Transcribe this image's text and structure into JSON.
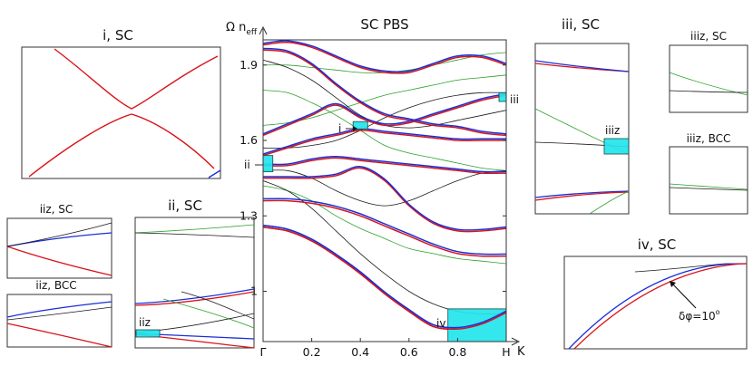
{
  "colors": {
    "red": "#d8141a",
    "blue": "#1a2ed8",
    "green": "#2aa02a",
    "black": "#1a1a1a",
    "highlight": "#22e6ec"
  },
  "chart_data": [
    {
      "id": "main",
      "type": "line",
      "title": "SC PBS",
      "ylabel": "Ω n_eff",
      "ylabel_main": "Ω n",
      "ylabel_sub": "eff",
      "xlabel": "K",
      "xlim": [
        0,
        1
      ],
      "ylim": [
        0.8,
        2.0
      ],
      "yticks": [
        1,
        1.3,
        1.6,
        1.9
      ],
      "ytick_labels": [
        "1",
        "1.3",
        "1.6",
        "1.9"
      ],
      "xticks": [
        0,
        0.2,
        0.4,
        0.6,
        0.8,
        1
      ],
      "xtick_labels": [
        "Γ",
        "0.2",
        "0.4",
        "0.6",
        "0.8",
        "H"
      ],
      "grid": false,
      "series": [
        {
          "color": "red",
          "x": [
            0,
            0.1,
            0.2,
            0.3,
            0.4,
            0.5,
            0.6,
            0.7,
            0.8,
            0.9,
            1
          ],
          "y": [
            1.255,
            1.24,
            1.2,
            1.14,
            1.07,
            0.99,
            0.92,
            0.86,
            0.85,
            0.87,
            0.915
          ]
        },
        {
          "color": "blue",
          "x": [
            0,
            0.1,
            0.2,
            0.3,
            0.4,
            0.5,
            0.6,
            0.7,
            0.8,
            0.9,
            1
          ],
          "y": [
            1.262,
            1.247,
            1.207,
            1.147,
            1.077,
            0.997,
            0.927,
            0.867,
            0.856,
            0.876,
            0.921
          ]
        },
        {
          "color": "red",
          "x": [
            0,
            0.1,
            0.2,
            0.3,
            0.4,
            0.5,
            0.6,
            0.7,
            0.8,
            0.9,
            1
          ],
          "y": [
            1.36,
            1.36,
            1.35,
            1.33,
            1.3,
            1.26,
            1.22,
            1.18,
            1.15,
            1.14,
            1.14
          ]
        },
        {
          "color": "blue",
          "x": [
            0,
            0.1,
            0.2,
            0.3,
            0.4,
            0.5,
            0.6,
            0.7,
            0.8,
            0.9,
            1
          ],
          "y": [
            1.368,
            1.368,
            1.358,
            1.338,
            1.308,
            1.268,
            1.228,
            1.188,
            1.158,
            1.148,
            1.148
          ]
        },
        {
          "color": "red",
          "x": [
            0,
            0.1,
            0.2,
            0.3,
            0.4,
            0.5,
            0.6,
            0.7,
            0.8,
            0.9,
            1
          ],
          "y": [
            1.45,
            1.45,
            1.45,
            1.46,
            1.49,
            1.44,
            1.34,
            1.27,
            1.24,
            1.24,
            1.25
          ]
        },
        {
          "color": "blue",
          "x": [
            0,
            0.1,
            0.2,
            0.3,
            0.4,
            0.5,
            0.6,
            0.7,
            0.8,
            0.9,
            1
          ],
          "y": [
            1.456,
            1.456,
            1.456,
            1.466,
            1.496,
            1.446,
            1.346,
            1.276,
            1.246,
            1.246,
            1.256
          ]
        },
        {
          "color": "red",
          "x": [
            0,
            0.1,
            0.2,
            0.3,
            0.4,
            0.5,
            0.6,
            0.7,
            0.8,
            0.9,
            1
          ],
          "y": [
            1.5,
            1.5,
            1.52,
            1.53,
            1.52,
            1.51,
            1.5,
            1.49,
            1.48,
            1.47,
            1.47
          ]
        },
        {
          "color": "blue",
          "x": [
            0,
            0.1,
            0.2,
            0.3,
            0.4,
            0.5,
            0.6,
            0.7,
            0.8,
            0.9,
            1
          ],
          "y": [
            1.506,
            1.506,
            1.526,
            1.536,
            1.526,
            1.516,
            1.506,
            1.496,
            1.486,
            1.476,
            1.476
          ]
        },
        {
          "color": "red",
          "x": [
            0,
            0.1,
            0.2,
            0.3,
            0.4,
            0.5,
            0.6,
            0.7,
            0.8,
            0.9,
            1
          ],
          "y": [
            1.54,
            1.57,
            1.6,
            1.62,
            1.64,
            1.63,
            1.62,
            1.61,
            1.6,
            1.6,
            1.6
          ]
        },
        {
          "color": "blue",
          "x": [
            0,
            0.1,
            0.2,
            0.3,
            0.4,
            0.5,
            0.6,
            0.7,
            0.8,
            0.9,
            1
          ],
          "y": [
            1.546,
            1.576,
            1.606,
            1.626,
            1.646,
            1.636,
            1.626,
            1.616,
            1.606,
            1.606,
            1.606
          ]
        },
        {
          "color": "red",
          "x": [
            0,
            0.1,
            0.2,
            0.3,
            0.4,
            0.5,
            0.6,
            0.7,
            0.8,
            0.9,
            1
          ],
          "y": [
            1.62,
            1.66,
            1.7,
            1.74,
            1.69,
            1.66,
            1.67,
            1.7,
            1.73,
            1.76,
            1.78
          ]
        },
        {
          "color": "blue",
          "x": [
            0,
            0.1,
            0.2,
            0.3,
            0.4,
            0.5,
            0.6,
            0.7,
            0.8,
            0.9,
            1
          ],
          "y": [
            1.626,
            1.666,
            1.706,
            1.746,
            1.696,
            1.666,
            1.676,
            1.706,
            1.736,
            1.766,
            1.786
          ]
        },
        {
          "color": "red",
          "x": [
            0,
            0.1,
            0.2,
            0.3,
            0.4,
            0.5,
            0.6,
            0.7,
            0.8,
            0.9,
            1
          ],
          "y": [
            1.96,
            1.95,
            1.9,
            1.82,
            1.75,
            1.7,
            1.68,
            1.66,
            1.65,
            1.63,
            1.62
          ]
        },
        {
          "color": "blue",
          "x": [
            0,
            0.1,
            0.2,
            0.3,
            0.4,
            0.5,
            0.6,
            0.7,
            0.8,
            0.9,
            1
          ],
          "y": [
            1.966,
            1.956,
            1.906,
            1.826,
            1.756,
            1.706,
            1.686,
            1.666,
            1.656,
            1.636,
            1.626
          ]
        },
        {
          "color": "red",
          "x": [
            0,
            0.1,
            0.2,
            0.3,
            0.4,
            0.5,
            0.6,
            0.7,
            0.8,
            0.9,
            1
          ],
          "y": [
            1.98,
            1.99,
            1.97,
            1.93,
            1.89,
            1.87,
            1.87,
            1.9,
            1.93,
            1.93,
            1.9
          ]
        },
        {
          "color": "blue",
          "x": [
            0,
            0.1,
            0.2,
            0.3,
            0.4,
            0.5,
            0.6,
            0.7,
            0.8,
            0.9,
            1
          ],
          "y": [
            1.986,
            1.996,
            1.976,
            1.936,
            1.896,
            1.876,
            1.876,
            1.906,
            1.936,
            1.936,
            1.906
          ]
        },
        {
          "color": "green",
          "x": [
            0,
            0.1,
            0.2,
            0.3,
            0.4,
            0.5,
            0.6,
            0.7,
            0.8,
            0.9,
            1
          ],
          "y": [
            1.42,
            1.4,
            1.36,
            1.3,
            1.25,
            1.21,
            1.17,
            1.15,
            1.13,
            1.12,
            1.11
          ]
        },
        {
          "color": "green",
          "x": [
            0,
            0.1,
            0.2,
            0.3,
            0.4,
            0.5,
            0.6,
            0.7,
            0.8,
            0.9,
            1
          ],
          "y": [
            1.8,
            1.79,
            1.75,
            1.7,
            1.64,
            1.58,
            1.55,
            1.53,
            1.51,
            1.49,
            1.48
          ]
        },
        {
          "color": "green",
          "x": [
            0,
            0.1,
            0.2,
            0.3,
            0.4,
            0.5,
            0.6,
            0.7,
            0.8,
            0.9,
            1
          ],
          "y": [
            1.66,
            1.67,
            1.69,
            1.72,
            1.75,
            1.78,
            1.8,
            1.82,
            1.84,
            1.85,
            1.86
          ]
        },
        {
          "color": "green",
          "x": [
            0,
            0.1,
            0.2,
            0.3,
            0.4,
            0.5,
            0.6,
            0.7,
            0.8,
            0.9,
            1
          ],
          "y": [
            1.9,
            1.9,
            1.89,
            1.88,
            1.87,
            1.87,
            1.88,
            1.9,
            1.92,
            1.94,
            1.95
          ]
        },
        {
          "color": "black",
          "x": [
            0,
            0.1,
            0.2,
            0.3,
            0.4,
            0.5,
            0.6,
            0.7,
            0.8,
            0.9,
            1
          ],
          "y": [
            1.44,
            1.4,
            1.33,
            1.24,
            1.15,
            1.07,
            1.0,
            0.95,
            0.92,
            0.91,
            0.91
          ]
        },
        {
          "color": "black",
          "x": [
            0,
            0.1,
            0.2,
            0.3,
            0.4,
            0.5,
            0.6,
            0.7,
            0.8,
            0.9,
            1
          ],
          "y": [
            1.57,
            1.57,
            1.58,
            1.6,
            1.64,
            1.69,
            1.73,
            1.76,
            1.78,
            1.79,
            1.79
          ]
        },
        {
          "color": "black",
          "x": [
            0,
            0.1,
            0.2,
            0.3,
            0.4,
            0.5,
            0.6,
            0.7,
            0.8,
            0.9,
            1
          ],
          "y": [
            1.92,
            1.89,
            1.84,
            1.77,
            1.7,
            1.66,
            1.65,
            1.66,
            1.68,
            1.7,
            1.72
          ]
        },
        {
          "color": "black",
          "x": [
            0,
            0.1,
            0.2,
            0.3,
            0.4,
            0.5,
            0.6,
            0.7,
            0.8,
            0.9,
            1
          ],
          "y": [
            1.48,
            1.48,
            1.45,
            1.4,
            1.36,
            1.34,
            1.36,
            1.4,
            1.44,
            1.47,
            1.48
          ]
        }
      ],
      "highlight_boxes": [
        {
          "label": "i",
          "x": [
            0.37,
            0.43
          ],
          "y": [
            1.645,
            1.675
          ]
        },
        {
          "label": "ii",
          "x": [
            0.0,
            0.04
          ],
          "y": [
            1.475,
            1.54
          ]
        },
        {
          "label": "iii",
          "x": [
            0.97,
            1.0
          ],
          "y": [
            1.755,
            1.79
          ]
        },
        {
          "label": "iv",
          "x": [
            0.76,
            1.0
          ],
          "y": [
            0.8,
            0.93
          ]
        }
      ]
    },
    {
      "id": "i",
      "type": "line",
      "title": "i, SC",
      "description_only": false,
      "series": [
        {
          "color": "red",
          "kind": "avoided-crossing"
        },
        {
          "color": "blue",
          "kind": "corner"
        }
      ]
    },
    {
      "id": "ii",
      "type": "line",
      "title": "ii, SC",
      "inset_label": "iiz"
    },
    {
      "id": "iiz_sc",
      "type": "line",
      "title": "iiz, SC"
    },
    {
      "id": "iiz_bcc",
      "type": "line",
      "title": "iiz, BCC"
    },
    {
      "id": "iii",
      "type": "line",
      "title": "iii, SC",
      "inset_label": "iiiz"
    },
    {
      "id": "iiiz_sc",
      "type": "line",
      "title": "iiiz, SC"
    },
    {
      "id": "iiiz_bcc",
      "type": "line",
      "title": "iiiz, BCC"
    },
    {
      "id": "iv",
      "type": "line",
      "title": "iv, SC",
      "annotation": "δφ=10",
      "annotation_sup": "o"
    }
  ]
}
